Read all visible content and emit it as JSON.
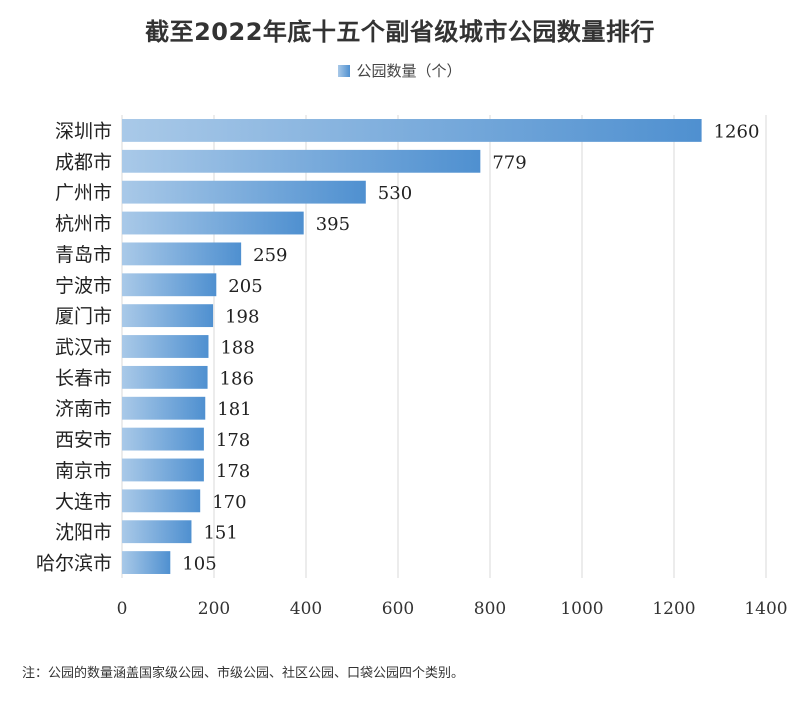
{
  "chart_data": {
    "type": "bar",
    "orientation": "horizontal",
    "title": "截至2022年底十五个副省级城市公园数量排行",
    "categories": [
      "深圳市",
      "成都市",
      "广州市",
      "杭州市",
      "青岛市",
      "宁波市",
      "厦门市",
      "武汉市",
      "长春市",
      "济南市",
      "西安市",
      "南京市",
      "大连市",
      "沈阳市",
      "哈尔滨市"
    ],
    "series": [
      {
        "name": "公园数量（个）",
        "values": [
          1260,
          779,
          530,
          395,
          259,
          205,
          198,
          188,
          186,
          181,
          178,
          178,
          170,
          151,
          105
        ]
      }
    ],
    "xlim": [
      0,
      1400
    ],
    "x_ticks": [
      0,
      200,
      400,
      600,
      800,
      1000,
      1200,
      1400
    ],
    "grid": true,
    "legend_position": "top",
    "bar_color_start": "#a9c9e8",
    "bar_color_end": "#4f90d0",
    "grid_color": "#d9d9d9"
  },
  "footnote": "注：公园的数量涵盖国家级公园、市级公园、社区公园、口袋公园四个类别。"
}
